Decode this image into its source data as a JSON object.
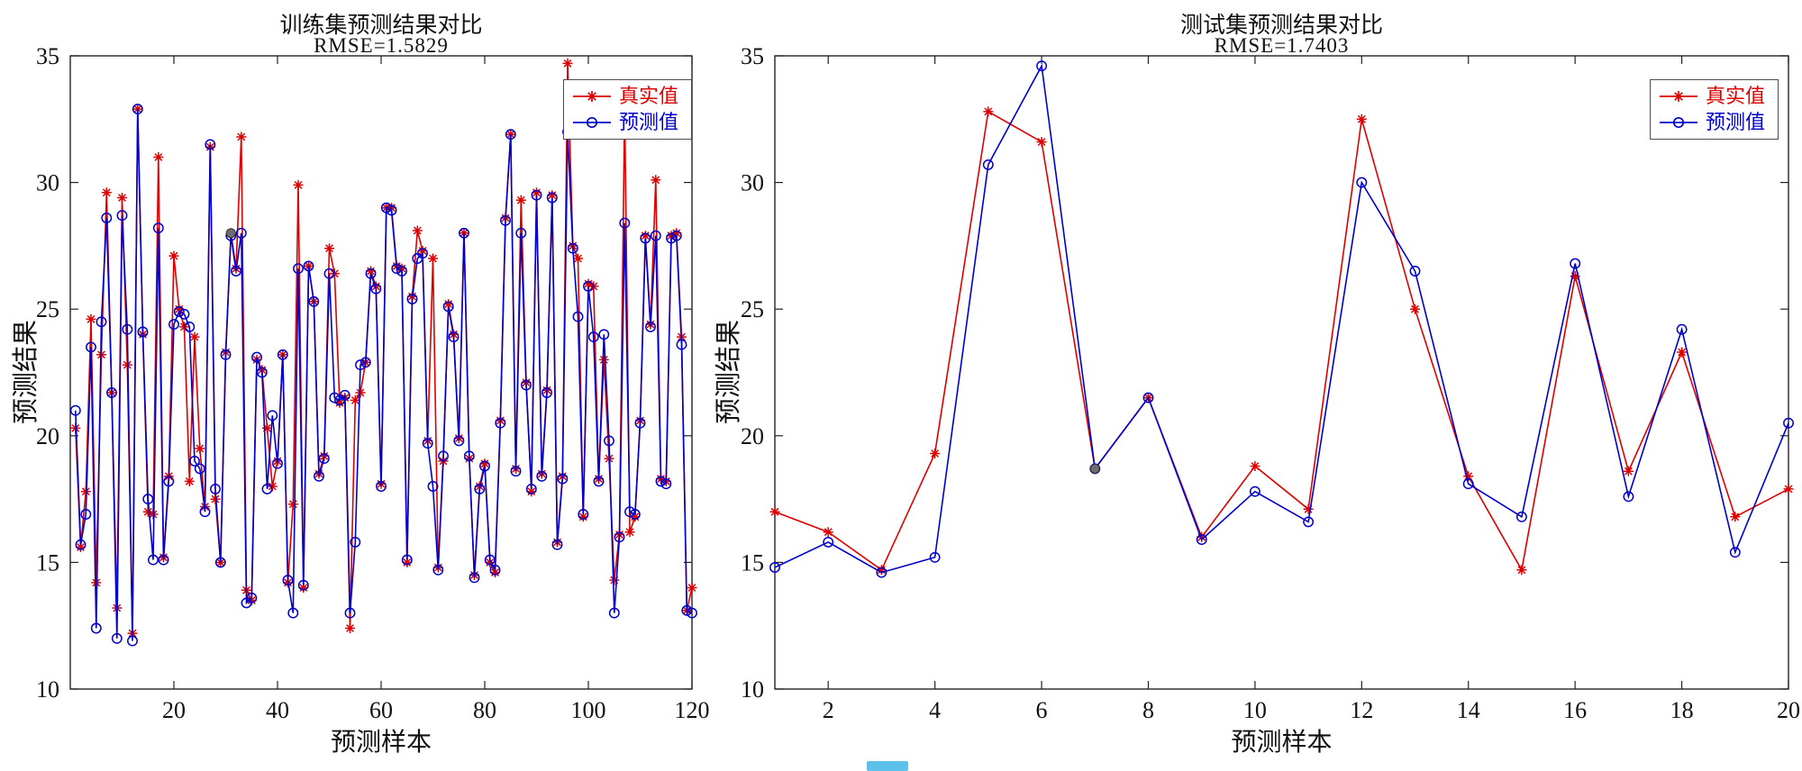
{
  "chart_data": [
    {
      "type": "line",
      "title": "训练集预测结果对比",
      "subtitle": "RMSE=1.5829",
      "xlabel": "预测样本",
      "ylabel": "预测结果",
      "xlim": [
        0,
        120
      ],
      "ylim": [
        10,
        35
      ],
      "xticks": [
        20,
        40,
        60,
        80,
        100,
        120
      ],
      "yticks": [
        10,
        15,
        20,
        25,
        30,
        35
      ],
      "grid": false,
      "legend_position": "northeast",
      "x_start": 1,
      "highlight_point": {
        "x": 31,
        "y": 28.0,
        "color": "#6e6e6e"
      },
      "series": [
        {
          "name": "真实值",
          "color": "#dd0000",
          "marker": "asterisk",
          "values": [
            20.3,
            15.6,
            17.8,
            24.6,
            14.2,
            23.2,
            29.6,
            21.7,
            13.2,
            29.4,
            22.8,
            12.2,
            32.9,
            24.0,
            17.0,
            16.9,
            31.0,
            15.2,
            18.4,
            27.1,
            25.0,
            24.3,
            18.2,
            23.9,
            19.5,
            17.2,
            31.4,
            17.5,
            15.0,
            23.3,
            28.0,
            26.6,
            31.8,
            13.9,
            13.5,
            23.0,
            22.6,
            20.3,
            18.0,
            19.0,
            23.2,
            14.2,
            17.3,
            29.9,
            14.0,
            26.7,
            25.3,
            18.5,
            19.2,
            27.4,
            26.4,
            21.3,
            21.5,
            12.4,
            21.4,
            21.7,
            22.9,
            26.5,
            25.9,
            18.1,
            29.0,
            29.0,
            26.7,
            26.6,
            15.0,
            25.5,
            28.1,
            27.3,
            19.8,
            27.0,
            14.8,
            19.0,
            25.2,
            24.0,
            19.9,
            28.0,
            19.1,
            14.5,
            18.0,
            18.9,
            15.0,
            14.6,
            20.6,
            28.6,
            31.9,
            18.7,
            29.3,
            22.1,
            17.8,
            29.6,
            18.5,
            21.8,
            29.5,
            15.8,
            18.4,
            34.7,
            27.5,
            27.0,
            16.8,
            26.0,
            25.9,
            18.3,
            23.0,
            19.1,
            14.3,
            16.1,
            33.0,
            16.2,
            16.8,
            20.6,
            27.9,
            24.4,
            30.1,
            18.3,
            18.2,
            27.9,
            28.0,
            23.9,
            13.1,
            14.0
          ]
        },
        {
          "name": "预测值",
          "color": "#0000cc",
          "marker": "circle",
          "values": [
            21.0,
            15.7,
            16.9,
            23.5,
            12.4,
            24.5,
            28.6,
            21.7,
            12.0,
            28.7,
            24.2,
            11.9,
            32.9,
            24.1,
            17.5,
            15.1,
            28.2,
            15.1,
            18.2,
            24.4,
            24.9,
            24.8,
            24.3,
            19.0,
            18.7,
            17.0,
            31.5,
            17.9,
            15.0,
            23.2,
            27.9,
            26.5,
            28.0,
            13.4,
            13.6,
            23.1,
            22.5,
            17.9,
            20.8,
            18.9,
            23.2,
            14.3,
            13.0,
            26.6,
            14.1,
            26.7,
            25.3,
            18.4,
            19.1,
            26.4,
            21.5,
            21.4,
            21.6,
            13.0,
            15.8,
            22.8,
            22.9,
            26.4,
            25.8,
            18.0,
            29.0,
            28.9,
            26.6,
            26.5,
            15.1,
            25.4,
            27.0,
            27.2,
            19.7,
            18.0,
            14.7,
            19.2,
            25.1,
            23.9,
            19.8,
            28.0,
            19.2,
            14.4,
            17.9,
            18.8,
            15.1,
            14.7,
            20.5,
            28.5,
            31.9,
            18.6,
            28.0,
            22.0,
            17.9,
            29.5,
            18.4,
            21.7,
            29.4,
            15.7,
            18.3,
            32.0,
            27.4,
            24.7,
            16.9,
            25.9,
            23.9,
            18.2,
            24.0,
            19.8,
            13.0,
            16.0,
            28.4,
            17.0,
            16.9,
            20.5,
            27.8,
            24.3,
            27.9,
            18.2,
            18.1,
            27.8,
            27.9,
            23.6,
            13.1,
            13.0
          ]
        }
      ]
    },
    {
      "type": "line",
      "title": "测试集预测结果对比",
      "subtitle": "RMSE=1.7403",
      "xlabel": "预测样本",
      "ylabel": "预测结果",
      "xlim": [
        1,
        20
      ],
      "ylim": [
        10,
        35
      ],
      "xticks": [
        2,
        4,
        6,
        8,
        10,
        12,
        14,
        16,
        18,
        20
      ],
      "yticks": [
        10,
        15,
        20,
        25,
        30,
        35
      ],
      "grid": false,
      "legend_position": "northeast",
      "x_start": 1,
      "highlight_point": {
        "x": 7,
        "y": 18.7,
        "color": "#6e6e6e"
      },
      "series": [
        {
          "name": "真实值",
          "color": "#dd0000",
          "marker": "asterisk",
          "values": [
            17.0,
            16.2,
            14.7,
            19.3,
            32.8,
            31.6,
            18.7,
            21.5,
            16.0,
            18.8,
            17.1,
            32.5,
            25.0,
            18.4,
            14.7,
            26.3,
            18.6,
            23.3,
            16.8,
            17.9
          ]
        },
        {
          "name": "预测值",
          "color": "#0000cc",
          "marker": "circle",
          "values": [
            14.8,
            15.8,
            14.6,
            15.2,
            30.7,
            34.6,
            18.7,
            21.5,
            15.9,
            17.8,
            16.6,
            30.0,
            26.5,
            18.1,
            16.8,
            26.8,
            17.6,
            24.2,
            15.4,
            20.5
          ]
        }
      ]
    }
  ],
  "artifacts": {
    "bottom_center_color": "#3fb6e8"
  }
}
